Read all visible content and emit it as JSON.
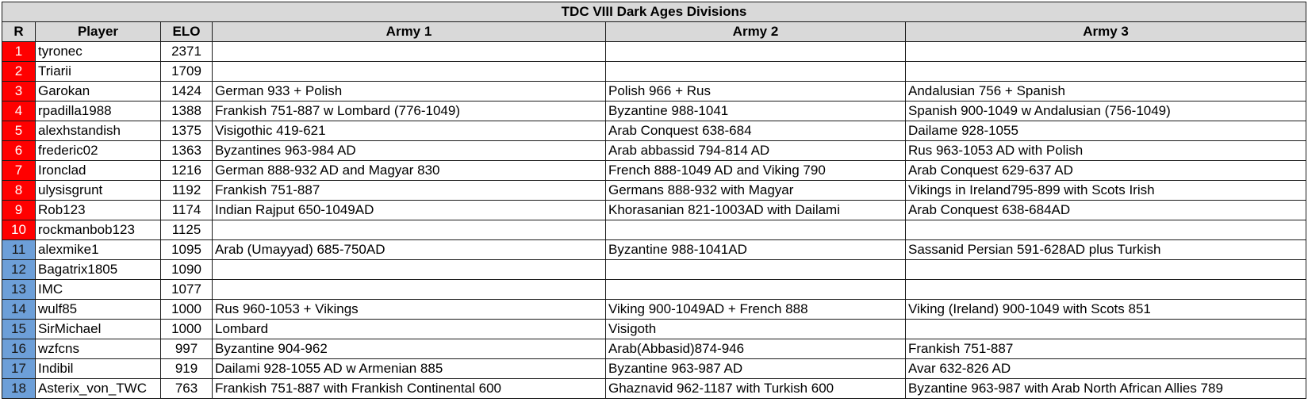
{
  "title": "TDC VIII Dark Ages Divisions",
  "headers": {
    "rank": "R",
    "player": "Player",
    "elo": "ELO",
    "army1": "Army 1",
    "army2": "Army 2",
    "army3": "Army 3"
  },
  "colors": {
    "top_division_rank": "#ff0000",
    "second_division_rank": "#6d9fd8",
    "header_bg": "#d9d9d9"
  },
  "rows": [
    {
      "rank": "1",
      "division": "red",
      "player": "tyronec",
      "elo": "2371",
      "army1": "",
      "army2": "",
      "army3": ""
    },
    {
      "rank": "2",
      "division": "red",
      "player": "Triarii",
      "elo": "1709",
      "army1": "",
      "army2": "",
      "army3": ""
    },
    {
      "rank": "3",
      "division": "red",
      "player": "Garokan",
      "elo": "1424",
      "army1": "German 933 + Polish",
      "army2": "Polish 966 + Rus",
      "army3": "Andalusian 756 + Spanish"
    },
    {
      "rank": "4",
      "division": "red",
      "player": "rpadilla1988",
      "elo": "1388",
      "army1": "Frankish 751-887 w Lombard (776-1049)",
      "army2": "Byzantine 988-1041",
      "army3": "Spanish 900-1049 w Andalusian (756-1049)"
    },
    {
      "rank": "5",
      "division": "red",
      "player": "alexhstandish",
      "elo": "1375",
      "army1": "Visigothic 419-621",
      "army2": "Arab Conquest 638-684",
      "army3": "Dailame 928-1055"
    },
    {
      "rank": "6",
      "division": "red",
      "player": "frederic02",
      "elo": "1363",
      "army1": "Byzantines 963-984 AD",
      "army2": "Arab abbassid 794-814 AD",
      "army3": "Rus 963-1053 AD with Polish"
    },
    {
      "rank": "7",
      "division": "red",
      "player": "Ironclad",
      "elo": "1216",
      "army1": "German 888-932 AD and Magyar 830",
      "army2": "French 888-1049 AD and Viking 790",
      "army3": "Arab Conquest 629-637 AD"
    },
    {
      "rank": "8",
      "division": "red",
      "player": "ulysisgrunt",
      "elo": "1192",
      "army1": "Frankish 751-887",
      "army2": "Germans 888-932 with Magyar",
      "army3": "Vikings in Ireland795-899 with Scots Irish"
    },
    {
      "rank": "9",
      "division": "red",
      "player": "Rob123",
      "elo": "1174",
      "army1": "Indian Rajput 650-1049AD",
      "army2": "Khorasanian 821-1003AD with Dailami",
      "army3": "Arab Conquest 638-684AD"
    },
    {
      "rank": "10",
      "division": "red",
      "player": "rockmanbob123",
      "elo": "1125",
      "army1": "",
      "army2": "",
      "army3": ""
    },
    {
      "rank": "11",
      "division": "blue",
      "player": "alexmike1",
      "elo": "1095",
      "army1": "Arab (Umayyad) 685-750AD",
      "army2": "Byzantine 988-1041AD",
      "army3": "Sassanid Persian 591-628AD plus Turkish"
    },
    {
      "rank": "12",
      "division": "blue",
      "player": "Bagatrix1805",
      "elo": "1090",
      "army1": "",
      "army2": "",
      "army3": ""
    },
    {
      "rank": "13",
      "division": "blue",
      "player": "IMC",
      "elo": "1077",
      "army1": "",
      "army2": "",
      "army3": ""
    },
    {
      "rank": "14",
      "division": "blue",
      "player": "wulf85",
      "elo": "1000",
      "army1": "Rus 960-1053 + Vikings",
      "army2": "Viking 900-1049AD + French 888",
      "army3": "Viking (Ireland) 900-1049 with Scots 851"
    },
    {
      "rank": "15",
      "division": "blue",
      "player": "SirMichael",
      "elo": "1000",
      "army1": "Lombard",
      "army2": "Visigoth",
      "army3": ""
    },
    {
      "rank": "16",
      "division": "blue",
      "player": "wzfcns",
      "elo": "997",
      "army1": "Byzantine 904-962",
      "army2": "Arab(Abbasid)874-946",
      "army3": "Frankish 751-887"
    },
    {
      "rank": "17",
      "division": "blue",
      "player": "Indibil",
      "elo": "919",
      "army1": "Dailami 928-1055 AD w Armenian 885",
      "army2": "Byzantine 963-987 AD",
      "army3": "Avar 632-826 AD"
    },
    {
      "rank": "18",
      "division": "blue",
      "player": "Asterix_von_TWC",
      "elo": "763",
      "army1": "Frankish 751-887 with Frankish Continental 600",
      "army2": "Ghaznavid 962-1187 with Turkish 600",
      "army3": "Byzantine 963-987 with Arab North African Allies 789"
    }
  ]
}
